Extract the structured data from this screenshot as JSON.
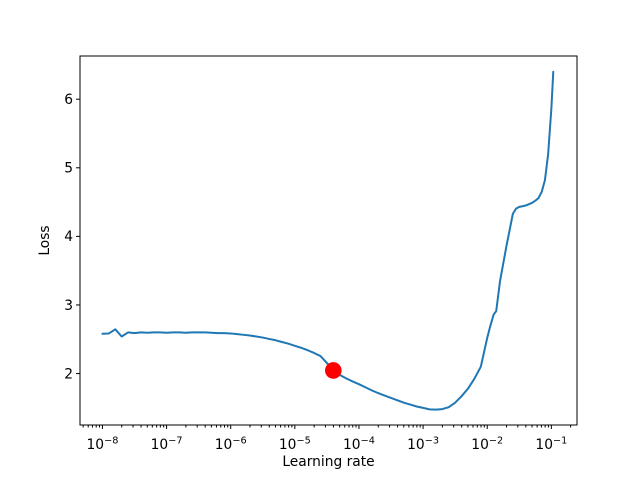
{
  "figure": {
    "background_color": "#ffffff",
    "spine_color": "#000000",
    "tick_color": "#000000",
    "text_color": "#000000"
  },
  "chart_data": {
    "type": "line",
    "title": "",
    "xlabel": "Learning rate",
    "ylabel": "Loss",
    "x_scale": "log",
    "y_scale": "linear",
    "grid": false,
    "legend": null,
    "xlim_log10": [
      -8.35,
      -0.6
    ],
    "ylim": [
      1.25,
      6.63
    ],
    "x_tick_exponents": [
      -8,
      -7,
      -6,
      -5,
      -4,
      -3,
      -2,
      -1
    ],
    "x_tick_base": "10",
    "y_ticks": [
      2,
      3,
      4,
      5,
      6
    ],
    "series": [
      {
        "name": "loss-vs-learning-rate",
        "color": "#1f77b4",
        "line_width": 2,
        "points_log10lr_loss": [
          [
            -8.0,
            2.58
          ],
          [
            -7.9,
            2.585
          ],
          [
            -7.8,
            2.645
          ],
          [
            -7.7,
            2.54
          ],
          [
            -7.6,
            2.6
          ],
          [
            -7.5,
            2.59
          ],
          [
            -7.4,
            2.6
          ],
          [
            -7.3,
            2.595
          ],
          [
            -7.2,
            2.6
          ],
          [
            -7.1,
            2.6
          ],
          [
            -7.0,
            2.595
          ],
          [
            -6.9,
            2.6
          ],
          [
            -6.8,
            2.6
          ],
          [
            -6.7,
            2.595
          ],
          [
            -6.6,
            2.6
          ],
          [
            -6.5,
            2.6
          ],
          [
            -6.4,
            2.6
          ],
          [
            -6.3,
            2.595
          ],
          [
            -6.2,
            2.59
          ],
          [
            -6.1,
            2.59
          ],
          [
            -6.0,
            2.585
          ],
          [
            -5.9,
            2.575
          ],
          [
            -5.8,
            2.565
          ],
          [
            -5.7,
            2.555
          ],
          [
            -5.6,
            2.54
          ],
          [
            -5.5,
            2.525
          ],
          [
            -5.4,
            2.505
          ],
          [
            -5.3,
            2.485
          ],
          [
            -5.2,
            2.46
          ],
          [
            -5.1,
            2.435
          ],
          [
            -5.0,
            2.405
          ],
          [
            -4.9,
            2.375
          ],
          [
            -4.8,
            2.34
          ],
          [
            -4.7,
            2.3
          ],
          [
            -4.6,
            2.255
          ],
          [
            -4.5,
            2.155
          ],
          [
            -4.4,
            2.045
          ],
          [
            -4.3,
            1.98
          ],
          [
            -4.2,
            1.93
          ],
          [
            -4.1,
            1.885
          ],
          [
            -4.0,
            1.845
          ],
          [
            -3.9,
            1.8
          ],
          [
            -3.8,
            1.755
          ],
          [
            -3.7,
            1.715
          ],
          [
            -3.6,
            1.68
          ],
          [
            -3.5,
            1.645
          ],
          [
            -3.4,
            1.61
          ],
          [
            -3.3,
            1.575
          ],
          [
            -3.2,
            1.548
          ],
          [
            -3.1,
            1.52
          ],
          [
            -3.0,
            1.5
          ],
          [
            -2.9,
            1.478
          ],
          [
            -2.8,
            1.475
          ],
          [
            -2.7,
            1.482
          ],
          [
            -2.6,
            1.51
          ],
          [
            -2.5,
            1.575
          ],
          [
            -2.4,
            1.67
          ],
          [
            -2.3,
            1.78
          ],
          [
            -2.2,
            1.925
          ],
          [
            -2.1,
            2.1
          ],
          [
            -2.0,
            2.52
          ],
          [
            -1.95,
            2.7
          ],
          [
            -1.9,
            2.86
          ],
          [
            -1.86,
            2.91
          ],
          [
            -1.8,
            3.35
          ],
          [
            -1.7,
            3.86
          ],
          [
            -1.6,
            4.33
          ],
          [
            -1.55,
            4.405
          ],
          [
            -1.5,
            4.43
          ],
          [
            -1.45,
            4.44
          ],
          [
            -1.4,
            4.45
          ],
          [
            -1.35,
            4.47
          ],
          [
            -1.3,
            4.49
          ],
          [
            -1.25,
            4.52
          ],
          [
            -1.2,
            4.56
          ],
          [
            -1.15,
            4.65
          ],
          [
            -1.1,
            4.82
          ],
          [
            -1.05,
            5.2
          ],
          [
            -1.0,
            5.86
          ],
          [
            -0.97,
            6.4
          ]
        ]
      }
    ],
    "marker": {
      "name": "suggested-learning-rate-point",
      "shape": "circle",
      "color": "#ff0000",
      "log10_lr": -4.4,
      "lr_approx": 4e-05,
      "loss": 2.045,
      "radius_px": 8.3
    }
  }
}
